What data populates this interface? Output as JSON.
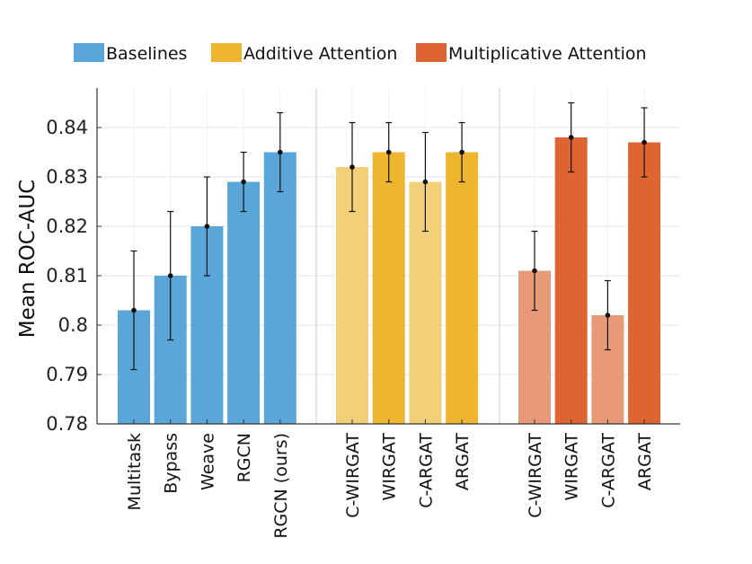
{
  "chart_data": {
    "type": "bar",
    "title": "",
    "xlabel": "",
    "ylabel": "Mean ROC-AUC",
    "ylim": [
      0.78,
      0.848
    ],
    "yticks": [
      0.78,
      0.79,
      0.8,
      0.81,
      0.82,
      0.83,
      0.84
    ],
    "ytick_labels": [
      "0.78",
      "0.79",
      "0.8",
      "0.81",
      "0.82",
      "0.83",
      "0.84"
    ],
    "grid": true,
    "legend_position": "top",
    "legend": [
      {
        "name": "Baselines",
        "color": "#5aa6d9"
      },
      {
        "name": "Additive Attention",
        "color": "#eeb52f"
      },
      {
        "name": "Multiplicative Attention",
        "color": "#de6532"
      }
    ],
    "groups": [
      {
        "name": "Baselines",
        "bars": [
          {
            "label": "Multitask",
            "value": 0.803,
            "err_low": 0.791,
            "err_high": 0.815,
            "color": "#5aa6d9"
          },
          {
            "label": "Bypass",
            "value": 0.81,
            "err_low": 0.797,
            "err_high": 0.823,
            "color": "#5aa6d9"
          },
          {
            "label": "Weave",
            "value": 0.82,
            "err_low": 0.81,
            "err_high": 0.83,
            "color": "#5aa6d9"
          },
          {
            "label": "RGCN",
            "value": 0.829,
            "err_low": 0.823,
            "err_high": 0.835,
            "color": "#5aa6d9"
          },
          {
            "label": "RGCN (ours)",
            "value": 0.835,
            "err_low": 0.827,
            "err_high": 0.843,
            "color": "#5aa6d9"
          }
        ]
      },
      {
        "name": "Additive Attention",
        "bars": [
          {
            "label": "C-WIRGAT",
            "value": 0.832,
            "err_low": 0.823,
            "err_high": 0.841,
            "color": "#f2d07a"
          },
          {
            "label": "WIRGAT",
            "value": 0.835,
            "err_low": 0.829,
            "err_high": 0.841,
            "color": "#eeb52f"
          },
          {
            "label": "C-ARGAT",
            "value": 0.829,
            "err_low": 0.819,
            "err_high": 0.839,
            "color": "#f2d07a"
          },
          {
            "label": "ARGAT",
            "value": 0.835,
            "err_low": 0.829,
            "err_high": 0.841,
            "color": "#eeb52f"
          }
        ]
      },
      {
        "name": "Multiplicative Attention",
        "bars": [
          {
            "label": "C-WIRGAT",
            "value": 0.811,
            "err_low": 0.803,
            "err_high": 0.819,
            "color": "#e89a78"
          },
          {
            "label": "WIRGAT",
            "value": 0.838,
            "err_low": 0.831,
            "err_high": 0.845,
            "color": "#de6532"
          },
          {
            "label": "C-ARGAT",
            "value": 0.802,
            "err_low": 0.795,
            "err_high": 0.809,
            "color": "#e89a78"
          },
          {
            "label": "ARGAT",
            "value": 0.837,
            "err_low": 0.83,
            "err_high": 0.844,
            "color": "#de6532"
          }
        ]
      }
    ]
  }
}
